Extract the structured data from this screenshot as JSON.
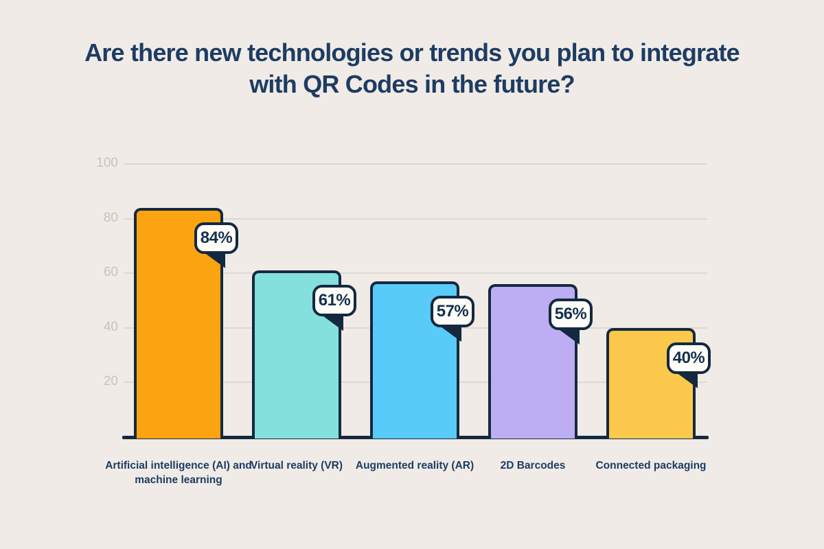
{
  "title": {
    "full": "Are there new technologies or trends you plan to integrate with QR Codes in the future?",
    "lines": [
      "Are there new technologies or trends you plan to integrate",
      "with QR Codes in the future?"
    ]
  },
  "chart_data": {
    "type": "bar",
    "title": "Are there new technologies or trends you plan to integrate with QR Codes in the future?",
    "categories": [
      "Artificial intelligence (AI) and machine learning",
      "Virtual reality (VR)",
      "Augmented reality (AR)",
      "2D Barcodes",
      "Connected packaging"
    ],
    "values": [
      84,
      61,
      57,
      56,
      40
    ],
    "value_labels": [
      "84%",
      "61%",
      "57%",
      "56%",
      "40%"
    ],
    "bar_colors": [
      "#FCA311",
      "#84E0DC",
      "#59CBF8",
      "#BDAEF4",
      "#FCC84C"
    ],
    "xlabel": "",
    "ylabel": "",
    "ylim": [
      0,
      100
    ],
    "yticks": [
      20,
      40,
      60,
      80,
      100
    ],
    "grid": true,
    "legend": "none"
  },
  "colors": {
    "background": "#F0EBE6",
    "title_text": "#1D3C63",
    "category_text": "#1D3C63",
    "bar_border": "#14293F",
    "axis_line": "#14293F",
    "gridline": "#DDD8D2",
    "ytick_text": "#C8C3BE",
    "bubble_fill": "#FFFDF8",
    "bubble_text": "#14304E"
  }
}
